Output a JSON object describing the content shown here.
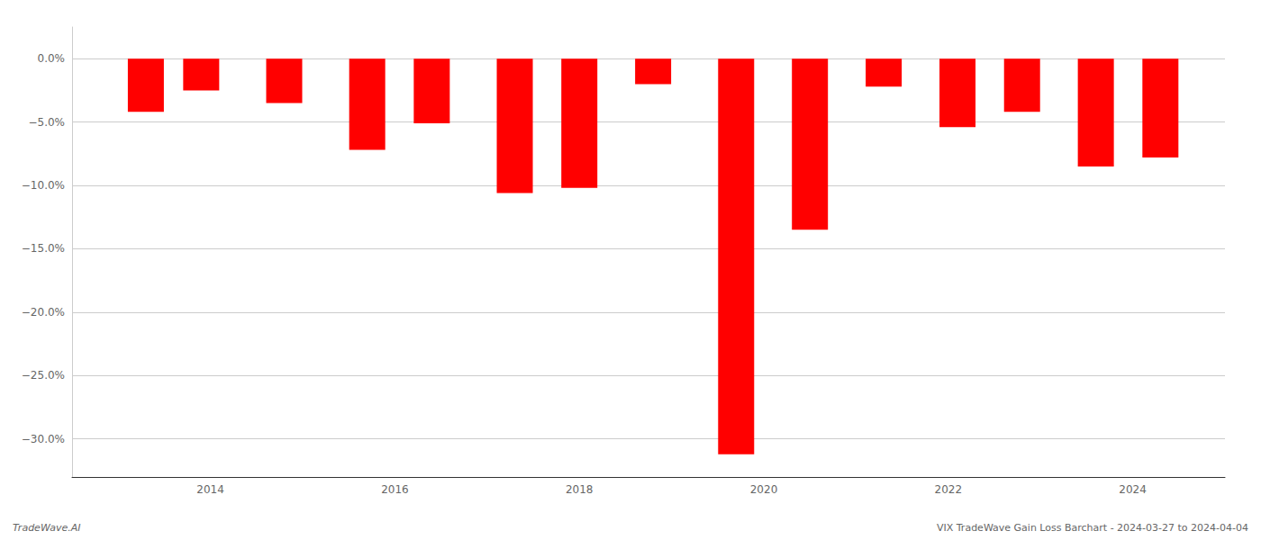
{
  "chart_data": {
    "type": "bar",
    "x": [
      2013.3,
      2013.9,
      2014.8,
      2015.7,
      2016.4,
      2017.3,
      2018.0,
      2018.8,
      2019.7,
      2020.5,
      2021.3,
      2022.1,
      2022.8,
      2023.6,
      2024.3
    ],
    "values": [
      -4.2,
      -2.5,
      -3.5,
      -7.2,
      -5.1,
      -10.6,
      -10.2,
      -2.0,
      -31.2,
      -13.5,
      -2.2,
      -5.4,
      -4.2,
      -8.5,
      -7.8
    ],
    "color": "#ff0000",
    "xlim": [
      2012.5,
      2025.0
    ],
    "xticks": [
      2014,
      2016,
      2018,
      2020,
      2022,
      2024
    ],
    "ylim": [
      -33,
      2.5
    ],
    "yticks": [
      {
        "value": 0.0,
        "label": "0.0%"
      },
      {
        "value": -5.0,
        "label": "−5.0%"
      },
      {
        "value": -10.0,
        "label": "−10.0%"
      },
      {
        "value": -15.0,
        "label": "−15.0%"
      },
      {
        "value": -20.0,
        "label": "−20.0%"
      },
      {
        "value": -25.0,
        "label": "−25.0%"
      },
      {
        "value": -30.0,
        "label": "−30.0%"
      }
    ],
    "grid": true,
    "annotations": [
      "TradeWave.AI",
      "VIX TradeWave Gain Loss Barchart - 2024-03-27 to 2024-04-04"
    ]
  }
}
